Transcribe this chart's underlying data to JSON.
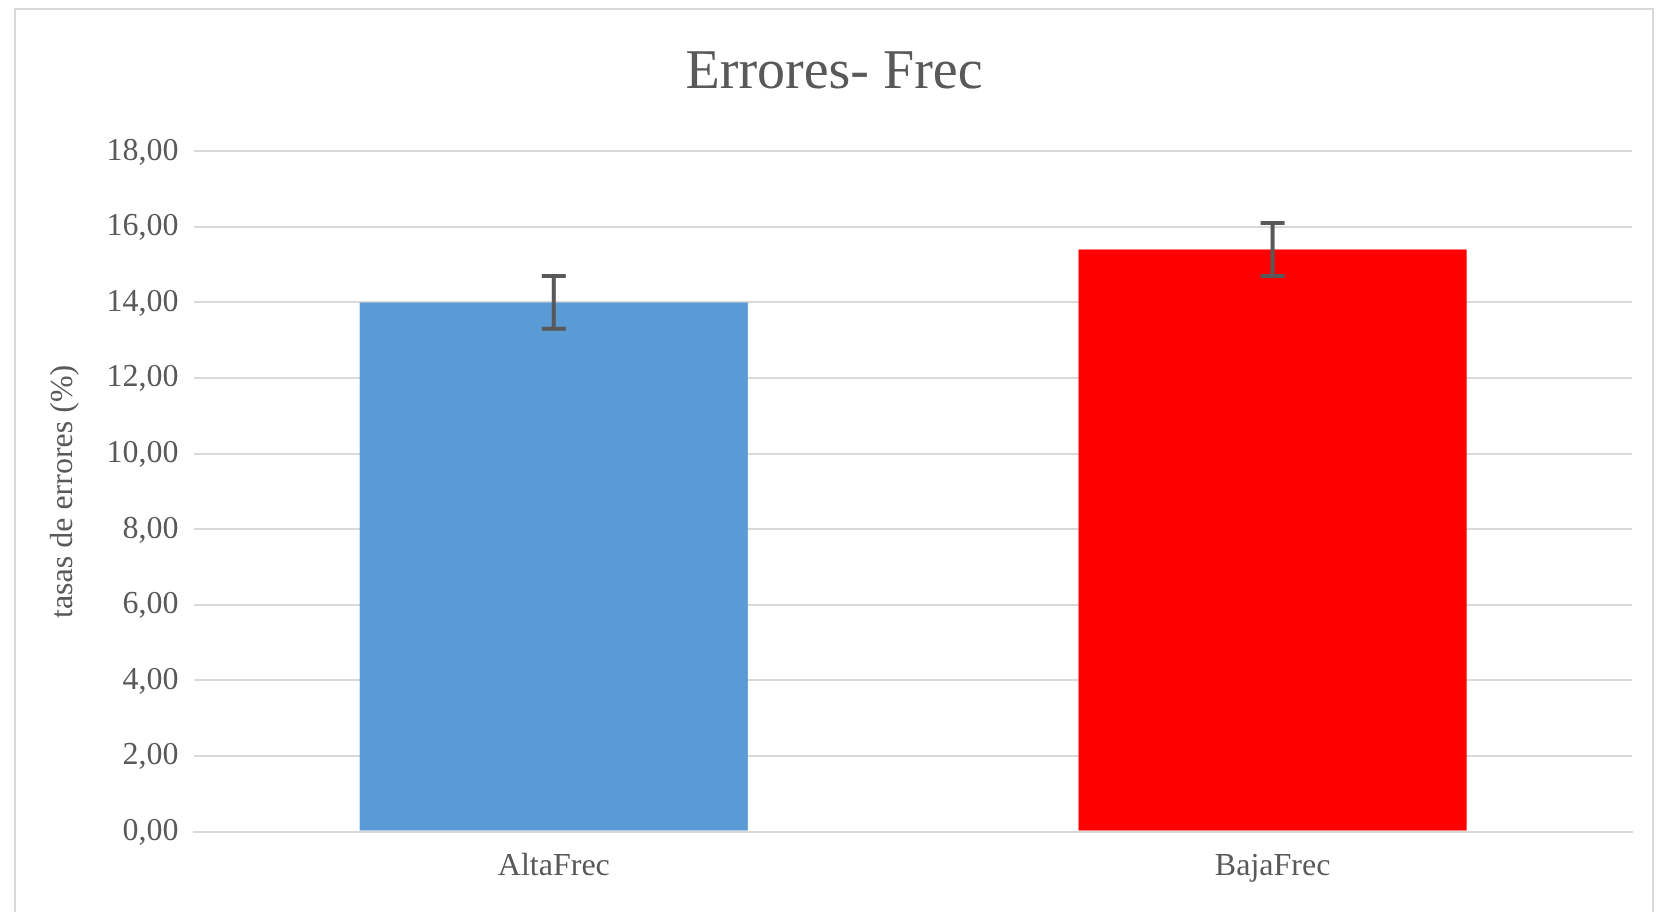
{
  "chart_data": {
    "type": "bar",
    "title": "Errores- Frec",
    "ylabel": "tasas de errores (%)",
    "categories": [
      "AltaFrec",
      "BajaFrec"
    ],
    "values": [
      14.0,
      15.4
    ],
    "colors": [
      "#5b9bd5",
      "#ff0000"
    ],
    "errors": [
      0.7,
      0.7
    ],
    "ylim": [
      0,
      18
    ],
    "yticks": [
      {
        "value": 0,
        "label": "0,00"
      },
      {
        "value": 2,
        "label": "2,00"
      },
      {
        "value": 4,
        "label": "4,00"
      },
      {
        "value": 6,
        "label": "6,00"
      },
      {
        "value": 8,
        "label": "8,00"
      },
      {
        "value": 10,
        "label": "10,00"
      },
      {
        "value": 12,
        "label": "12,00"
      },
      {
        "value": 14,
        "label": "14,00"
      },
      {
        "value": 16,
        "label": "16,00"
      },
      {
        "value": 18,
        "label": "18,00"
      }
    ],
    "grid": "y",
    "legend": false
  }
}
